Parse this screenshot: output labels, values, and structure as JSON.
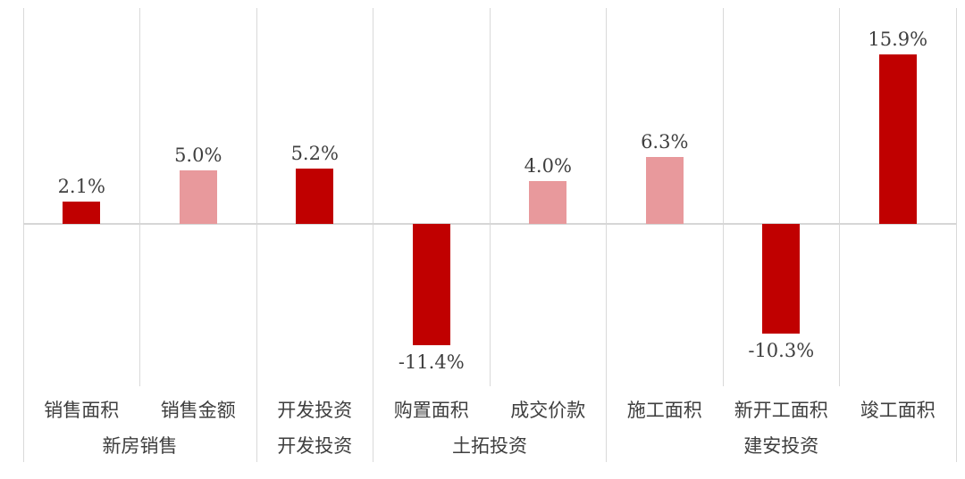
{
  "chart_data": {
    "type": "bar",
    "title": "",
    "unit": "%",
    "legend": "none",
    "grid": "vertical-only",
    "ylim": [
      -15.2,
      20.3
    ],
    "categories": [
      "销售面积",
      "销售金额",
      "开发投资",
      "购置面积",
      "成交价款",
      "施工面积",
      "新开工面积",
      "竣工面积"
    ],
    "values": [
      2.1,
      5.0,
      5.2,
      -11.4,
      4.0,
      6.3,
      -10.3,
      15.9
    ],
    "value_labels": [
      "2.1%",
      "5.0%",
      "5.2%",
      "-11.4%",
      "4.0%",
      "6.3%",
      "-10.3%",
      "15.9%"
    ],
    "bar_styles": [
      "dark",
      "pink",
      "dark",
      "dark",
      "pink",
      "pink",
      "dark",
      "dark"
    ],
    "groups": [
      {
        "label": "新房销售",
        "span": 2
      },
      {
        "label": "开发投资",
        "span": 1
      },
      {
        "label": "土拓投资",
        "span": 2
      },
      {
        "label": "建安投资",
        "span": 3
      }
    ]
  },
  "colors": {
    "bar_dark": "#c00000",
    "bar_pink": "#e8999c",
    "gridline": "#d9d9d9",
    "zero_line": "#d6d6d6",
    "label_text": "#3f3f3f",
    "background": "#ffffff"
  }
}
